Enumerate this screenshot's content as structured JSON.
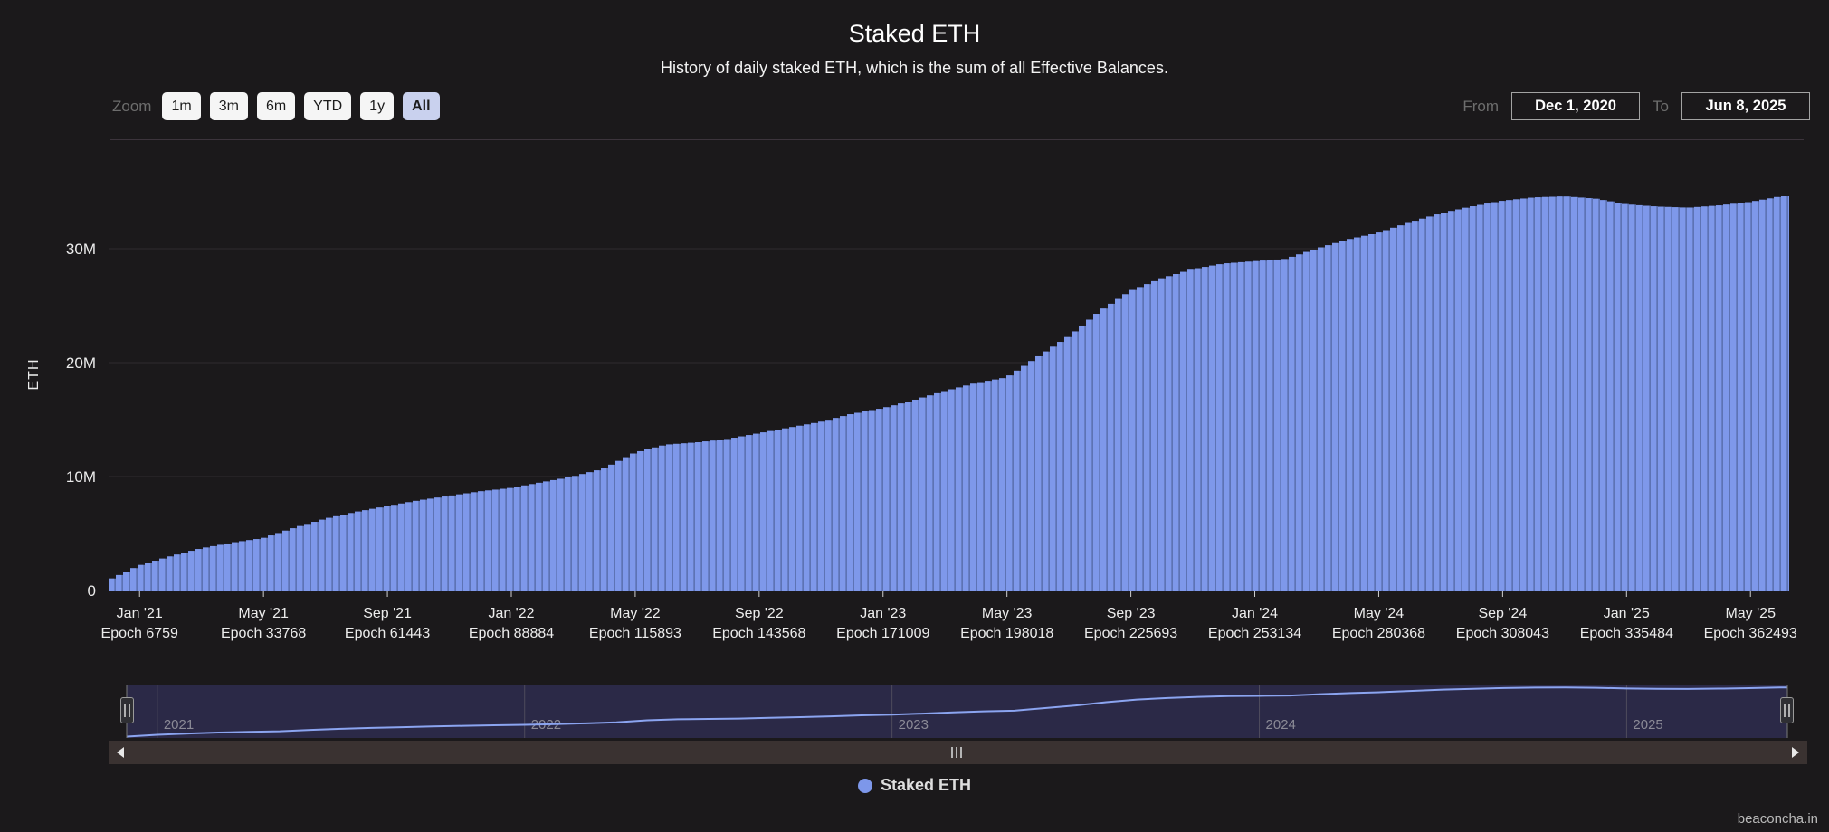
{
  "header": {
    "title": "Staked ETH",
    "subtitle": "History of daily staked ETH, which is the sum of all Effective Balances."
  },
  "controls": {
    "zoom_label": "Zoom",
    "zoom_buttons": [
      {
        "label": "1m",
        "active": false
      },
      {
        "label": "3m",
        "active": false
      },
      {
        "label": "6m",
        "active": false
      },
      {
        "label": "YTD",
        "active": false
      },
      {
        "label": "1y",
        "active": false
      },
      {
        "label": "All",
        "active": true
      }
    ],
    "from_label": "From",
    "from_value": "Dec 1, 2020",
    "to_label": "To",
    "to_value": "Jun 8, 2025"
  },
  "legend": {
    "items": [
      {
        "label": "Staked ETH",
        "color": "#7d97ea"
      }
    ]
  },
  "watermark": "beaconcha.in",
  "chart_data": {
    "type": "area",
    "title": "Staked ETH",
    "subtitle": "History of daily staked ETH, which is the sum of all Effective Balances.",
    "xlabel": "",
    "ylabel": "ETH",
    "unit": "millions of ETH",
    "x_range": [
      "Dec 1, 2020",
      "Jun 8, 2025"
    ],
    "ylim": [
      0,
      36
    ],
    "grid": true,
    "legend_position": "bottom-center",
    "x": [
      "2020-12",
      "2021-01",
      "2021-02",
      "2021-03",
      "2021-04",
      "2021-05",
      "2021-06",
      "2021-07",
      "2021-08",
      "2021-09",
      "2021-10",
      "2021-11",
      "2021-12",
      "2022-01",
      "2022-02",
      "2022-03",
      "2022-04",
      "2022-05",
      "2022-06",
      "2022-07",
      "2022-08",
      "2022-09",
      "2022-10",
      "2022-11",
      "2022-12",
      "2023-01",
      "2023-02",
      "2023-03",
      "2023-04",
      "2023-05",
      "2023-06",
      "2023-07",
      "2023-08",
      "2023-09",
      "2023-10",
      "2023-11",
      "2023-12",
      "2024-01",
      "2024-02",
      "2024-03",
      "2024-04",
      "2024-05",
      "2024-06",
      "2024-07",
      "2024-08",
      "2024-09",
      "2024-10",
      "2024-11",
      "2024-12",
      "2025-01",
      "2025-02",
      "2025-03",
      "2025-04",
      "2025-05",
      "2025-06"
    ],
    "series": [
      {
        "name": "Staked ETH",
        "values": [
          0.9,
          2.2,
          3.0,
          3.7,
          4.2,
          4.6,
          5.5,
          6.3,
          6.9,
          7.4,
          7.9,
          8.3,
          8.7,
          9.0,
          9.5,
          10.0,
          10.7,
          12.1,
          12.8,
          13.0,
          13.3,
          13.8,
          14.3,
          14.8,
          15.5,
          16.0,
          16.7,
          17.5,
          18.2,
          18.7,
          20.5,
          22.3,
          24.5,
          26.3,
          27.4,
          28.2,
          28.7,
          28.9,
          29.1,
          30.0,
          30.8,
          31.4,
          32.3,
          33.1,
          33.7,
          34.2,
          34.5,
          34.6,
          34.4,
          33.9,
          33.7,
          33.6,
          33.8,
          34.1,
          34.6
        ]
      }
    ],
    "yticks": [
      {
        "value": 0,
        "label": "0"
      },
      {
        "value": 10,
        "label": "10M"
      },
      {
        "value": 20,
        "label": "20M"
      },
      {
        "value": 30,
        "label": "30M"
      }
    ],
    "xticks": [
      {
        "label": "Jan '21",
        "sublabel": "Epoch 6759",
        "month_index": 1
      },
      {
        "label": "May '21",
        "sublabel": "Epoch 33768",
        "month_index": 5
      },
      {
        "label": "Sep '21",
        "sublabel": "Epoch 61443",
        "month_index": 9
      },
      {
        "label": "Jan '22",
        "sublabel": "Epoch 88884",
        "month_index": 13
      },
      {
        "label": "May '22",
        "sublabel": "Epoch 115893",
        "month_index": 17
      },
      {
        "label": "Sep '22",
        "sublabel": "Epoch 143568",
        "month_index": 21
      },
      {
        "label": "Jan '23",
        "sublabel": "Epoch 171009",
        "month_index": 25
      },
      {
        "label": "May '23",
        "sublabel": "Epoch 198018",
        "month_index": 29
      },
      {
        "label": "Sep '23",
        "sublabel": "Epoch 225693",
        "month_index": 33
      },
      {
        "label": "Jan '24",
        "sublabel": "Epoch 253134",
        "month_index": 37
      },
      {
        "label": "May '24",
        "sublabel": "Epoch 280368",
        "month_index": 41
      },
      {
        "label": "Sep '24",
        "sublabel": "Epoch 308043",
        "month_index": 45
      },
      {
        "label": "Jan '25",
        "sublabel": "Epoch 335484",
        "month_index": 49
      },
      {
        "label": "May '25",
        "sublabel": "Epoch 362493",
        "month_index": 53
      }
    ],
    "navigator": {
      "years": [
        {
          "label": "2021",
          "month_index": 1
        },
        {
          "label": "2022",
          "month_index": 13
        },
        {
          "label": "2023",
          "month_index": 25
        },
        {
          "label": "2024",
          "month_index": 37
        },
        {
          "label": "2025",
          "month_index": 49
        }
      ]
    },
    "colors": {
      "column": "#7e98ea",
      "column_gap": "#5d73b4",
      "axis_line": "#d0d0d0",
      "grid_line": "#2f2c2f",
      "tick_text": "#ececec",
      "navigator_fill": "#2b2947",
      "navigator_line": "#8ba4f0",
      "navigator_outline": "#7a7a7a",
      "navigator_year_line": "#4e4b5c",
      "navigator_year_text": "#8b8a96"
    }
  }
}
